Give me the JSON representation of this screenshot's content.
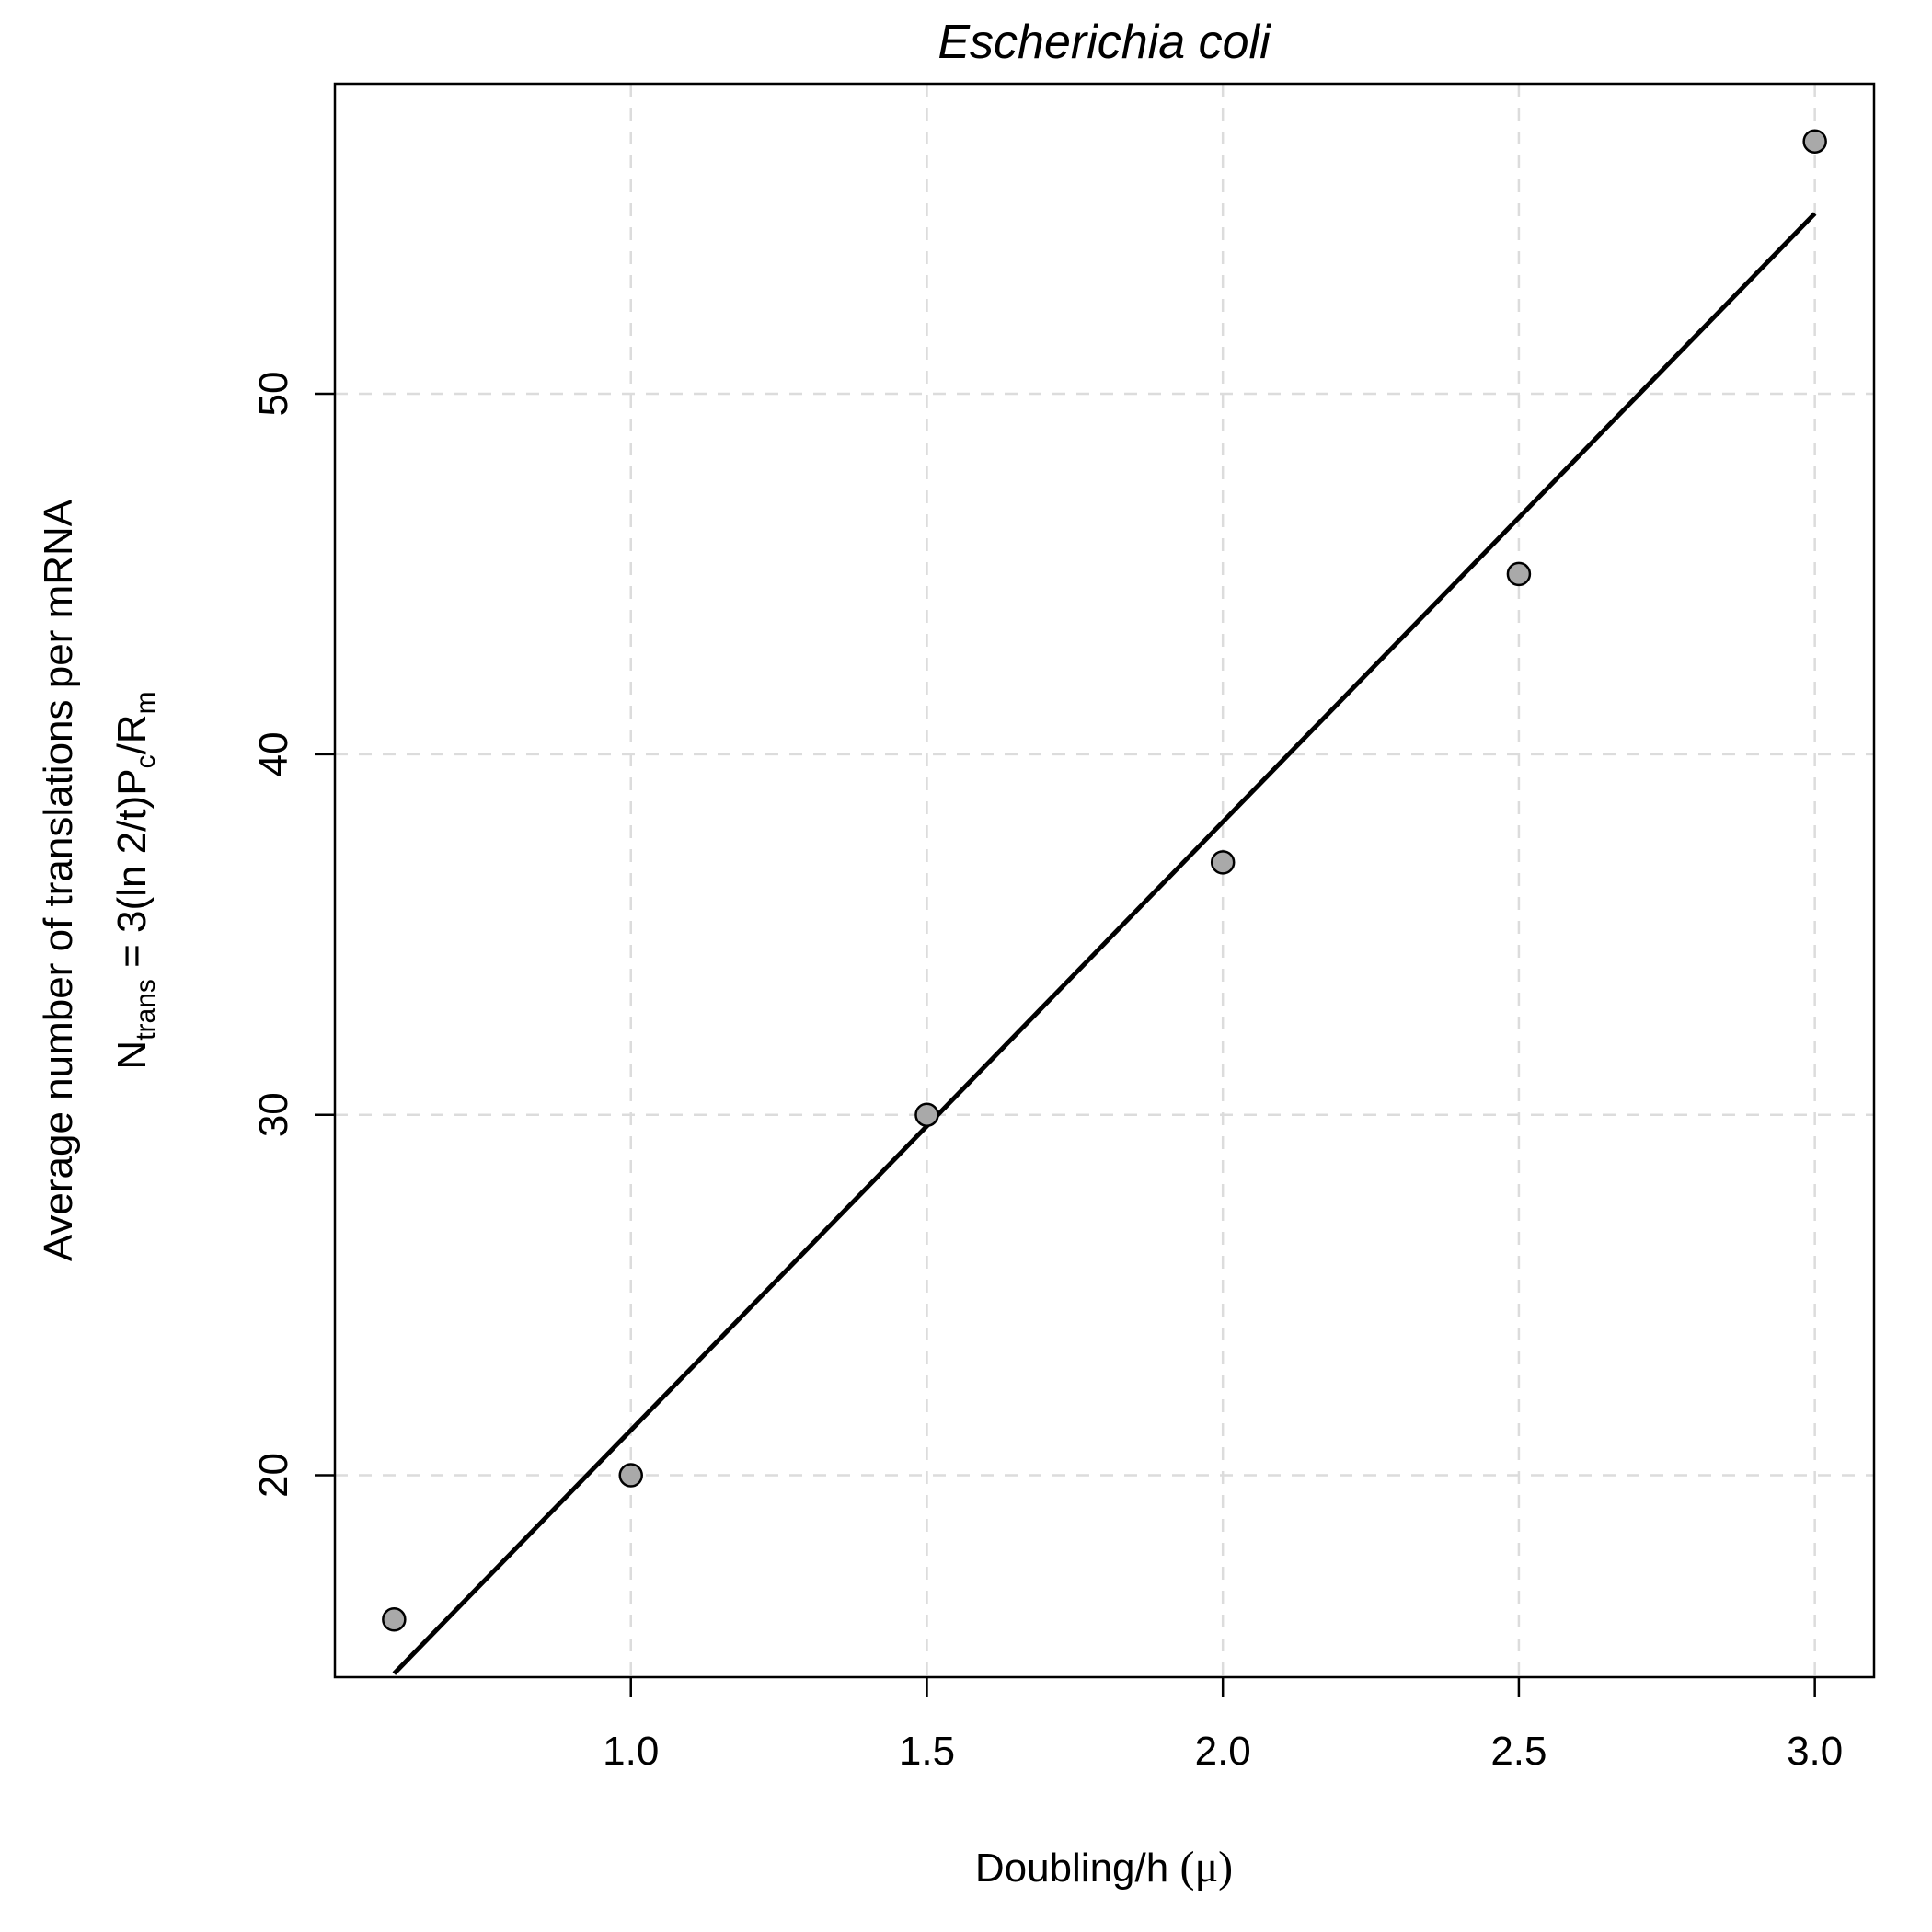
{
  "chart_data": {
    "type": "scatter",
    "title": "Escherichia coli",
    "xlabel": {
      "text": "Doubling/h",
      "symbol": "(μ)"
    },
    "ylabel": {
      "line1": "Average number of translations per mRNA",
      "line2": {
        "N": "N",
        "N_sub": "trans",
        "middle": " = 3(ln 2/t)P",
        "P_sub": "c",
        "slash": "/R",
        "R_sub": "m"
      }
    },
    "xlim": [
      0.5,
      3.1
    ],
    "ylim": [
      14.4,
      58.6
    ],
    "x_ticks": [
      1.0,
      1.5,
      2.0,
      2.5,
      3.0
    ],
    "x_tick_labels": [
      "1.0",
      "1.5",
      "2.0",
      "2.5",
      "3.0"
    ],
    "y_ticks": [
      20,
      30,
      40,
      50
    ],
    "y_tick_labels": [
      "20",
      "30",
      "40",
      "50"
    ],
    "grid": true,
    "series": [
      {
        "points": [
          {
            "x": 0.6,
            "y": 16
          },
          {
            "x": 1.0,
            "y": 20
          },
          {
            "x": 1.5,
            "y": 30
          },
          {
            "x": 2.0,
            "y": 37
          },
          {
            "x": 2.5,
            "y": 45
          },
          {
            "x": 3.0,
            "y": 57
          }
        ],
        "marker_color": "#a9a9a9"
      }
    ],
    "fit_line": {
      "x": [
        0.6,
        3.0
      ],
      "y": [
        14.5,
        55
      ]
    }
  }
}
